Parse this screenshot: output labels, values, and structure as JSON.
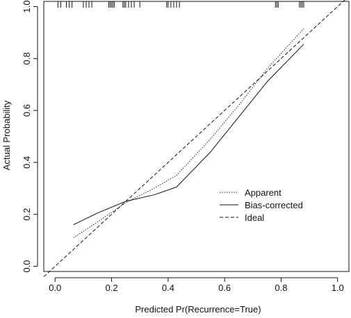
{
  "chart_data": {
    "type": "line",
    "title": "",
    "xlabel": "Predicted Pr(Recurrence=True)",
    "ylabel": "Actual Probability",
    "xlim": [
      -0.04,
      1.04
    ],
    "ylim": [
      -0.02,
      1.02
    ],
    "grid": false,
    "legend_position": "lower-right",
    "x_ticks": [
      0.0,
      0.2,
      0.4,
      0.6,
      0.8,
      1.0
    ],
    "x_tick_labels": [
      "0.0",
      "0.2",
      "0.4",
      "0.6",
      "0.8",
      "1.0"
    ],
    "y_ticks": [
      0.0,
      0.2,
      0.4,
      0.6,
      0.8,
      1.0
    ],
    "y_tick_labels": [
      "0.0",
      "0.2",
      "0.4",
      "0.6",
      "0.8",
      "1.0"
    ],
    "series": [
      {
        "name": "Apparent",
        "line_style": "dotted",
        "x": [
          0.065,
          0.15,
          0.25,
          0.35,
          0.43,
          0.55,
          0.65,
          0.75,
          0.88
        ],
        "y": [
          0.11,
          0.17,
          0.245,
          0.3,
          0.35,
          0.49,
          0.62,
          0.76,
          0.915
        ]
      },
      {
        "name": "Bias-corrected",
        "line_style": "solid",
        "x": [
          0.065,
          0.15,
          0.25,
          0.35,
          0.43,
          0.55,
          0.65,
          0.75,
          0.88
        ],
        "y": [
          0.16,
          0.205,
          0.25,
          0.275,
          0.305,
          0.44,
          0.575,
          0.71,
          0.855
        ]
      },
      {
        "name": "Ideal",
        "line_style": "dashed",
        "x": [
          -0.04,
          1.04
        ],
        "y": [
          -0.04,
          1.04
        ]
      }
    ],
    "rug_x": [
      0.01,
      0.02,
      0.04,
      0.05,
      0.06,
      0.1,
      0.11,
      0.12,
      0.13,
      0.19,
      0.195,
      0.2,
      0.205,
      0.21,
      0.24,
      0.245,
      0.25,
      0.26,
      0.27,
      0.28,
      0.3,
      0.395,
      0.4,
      0.41,
      0.42,
      0.43,
      0.44,
      0.78,
      0.785,
      0.79,
      0.865,
      0.87,
      0.875,
      0.88
    ]
  }
}
